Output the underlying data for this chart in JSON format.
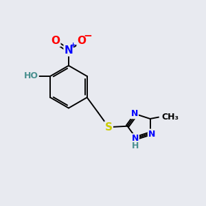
{
  "bg_color": "#e8eaf0",
  "bond_color": "#000000",
  "atom_colors": {
    "O": "#ff0000",
    "N": "#0000ff",
    "S": "#cccc00",
    "H": "#4a9090",
    "C": "#000000"
  },
  "font_size_large": 11,
  "font_size_med": 9,
  "font_size_small": 8,
  "lw": 1.4
}
